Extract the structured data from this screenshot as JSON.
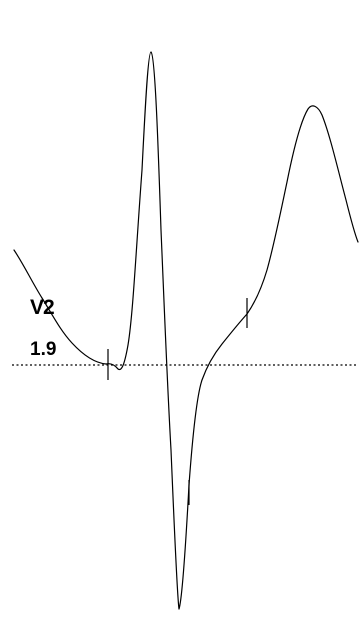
{
  "lead": {
    "name": "V2",
    "value": "1.9"
  },
  "colors": {
    "trace": "#000000",
    "baseline": "#000000",
    "background": "#ffffff"
  }
}
